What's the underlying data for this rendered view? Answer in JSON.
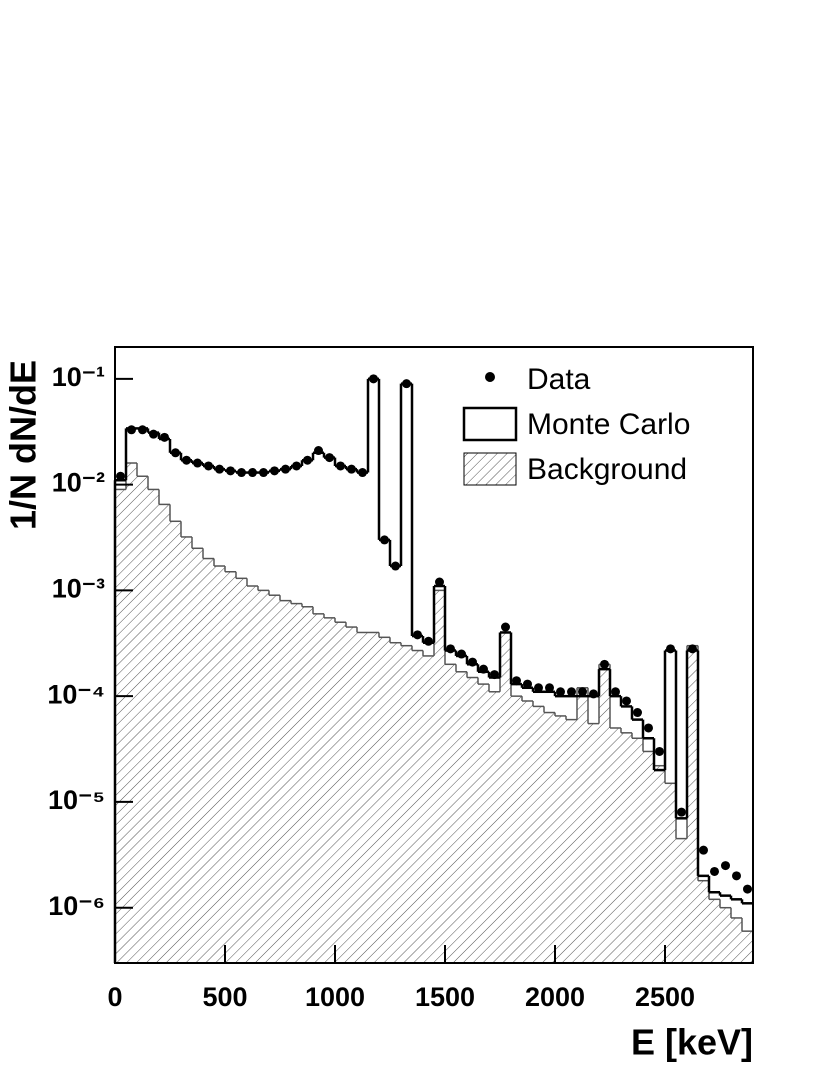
{
  "chart_data": {
    "type": "histogram",
    "xlabel": "E [keV]",
    "ylabel": "1/N dN/dE",
    "xlim": [
      0,
      2900
    ],
    "ylim": [
      3e-07,
      0.2
    ],
    "logy": true,
    "xticks": [
      0,
      500,
      1000,
      1500,
      2000,
      2500
    ],
    "yticks": [
      {
        "value": 0.1,
        "label": "10⁻¹"
      },
      {
        "value": 0.01,
        "label": "10⁻²"
      },
      {
        "value": 0.001,
        "label": "10⁻³"
      },
      {
        "value": 0.0001,
        "label": "10⁻⁴"
      },
      {
        "value": 1e-05,
        "label": "10⁻⁵"
      },
      {
        "value": 1e-06,
        "label": "10⁻⁶"
      }
    ],
    "legend": "upper right",
    "bins": [
      0,
      50,
      100,
      150,
      200,
      250,
      300,
      350,
      400,
      450,
      500,
      550,
      600,
      650,
      700,
      750,
      800,
      850,
      900,
      950,
      1000,
      1050,
      1100,
      1150,
      1200,
      1250,
      1300,
      1350,
      1400,
      1450,
      1500,
      1550,
      1600,
      1650,
      1700,
      1750,
      1800,
      1850,
      1900,
      1950,
      2000,
      2050,
      2100,
      2150,
      2200,
      2250,
      2300,
      2350,
      2400,
      2450,
      2500,
      2550,
      2600,
      2650,
      2700,
      2750,
      2800,
      2850,
      2900
    ],
    "series": [
      {
        "name": "Data",
        "style": "markers",
        "color": "#000000",
        "values": [
          0.012,
          0.033,
          0.033,
          0.03,
          0.028,
          0.02,
          0.017,
          0.016,
          0.015,
          0.014,
          0.0135,
          0.013,
          0.013,
          0.013,
          0.0135,
          0.014,
          0.015,
          0.017,
          0.021,
          0.018,
          0.015,
          0.014,
          0.013,
          0.1,
          0.003,
          0.0017,
          0.09,
          0.00038,
          0.00033,
          0.0012,
          0.00028,
          0.00025,
          0.00021,
          0.00018,
          0.00016,
          0.00045,
          0.00014,
          0.00013,
          0.00012,
          0.00012,
          0.00011,
          0.00011,
          0.00011,
          0.000105,
          0.0002,
          0.00011,
          9e-05,
          7e-05,
          5e-05,
          3e-05,
          0.00028,
          8e-06,
          0.00028,
          3.5e-06,
          2.2e-06,
          2.5e-06,
          2e-06,
          1.5e-06
        ]
      },
      {
        "name": "Monte Carlo",
        "style": "step",
        "color": "#000000",
        "values": [
          0.011,
          0.034,
          0.034,
          0.031,
          0.027,
          0.02,
          0.017,
          0.016,
          0.015,
          0.014,
          0.0135,
          0.013,
          0.013,
          0.013,
          0.0135,
          0.014,
          0.015,
          0.017,
          0.02,
          0.018,
          0.015,
          0.014,
          0.013,
          0.1,
          0.003,
          0.0017,
          0.09,
          0.00037,
          0.00032,
          0.0011,
          0.00027,
          0.00024,
          0.0002,
          0.00017,
          0.00015,
          0.0004,
          0.00013,
          0.00012,
          0.00011,
          0.00011,
          0.0001,
          0.0001,
          0.0001,
          0.0001,
          0.00018,
          0.0001,
          8e-05,
          6e-05,
          4e-05,
          2e-05,
          0.00027,
          7e-06,
          0.00027,
          2e-06,
          1.4e-06,
          1.3e-06,
          1.2e-06,
          1.1e-06
        ]
      },
      {
        "name": "Background",
        "style": "hatched",
        "color": "#555555",
        "values": [
          0.009,
          0.016,
          0.012,
          0.009,
          0.0065,
          0.0045,
          0.0032,
          0.0025,
          0.002,
          0.0017,
          0.0015,
          0.0013,
          0.0011,
          0.001,
          0.0009,
          0.0008,
          0.00075,
          0.0007,
          0.0006,
          0.00055,
          0.0005,
          0.00045,
          0.0004,
          0.0004,
          0.00036,
          0.00032,
          0.0003,
          0.00027,
          0.00024,
          0.001,
          0.0002,
          0.00017,
          0.00015,
          0.00013,
          0.00011,
          0.0004,
          0.0001,
          9e-05,
          8e-05,
          7e-05,
          6.5e-05,
          6e-05,
          0.00012,
          5.5e-05,
          0.0002,
          5e-05,
          4.5e-05,
          4e-05,
          3e-05,
          2.2e-05,
          1.5e-05,
          4.5e-06,
          0.0003,
          1.8e-06,
          1.2e-06,
          1e-06,
          8e-07,
          6e-07
        ]
      }
    ]
  }
}
